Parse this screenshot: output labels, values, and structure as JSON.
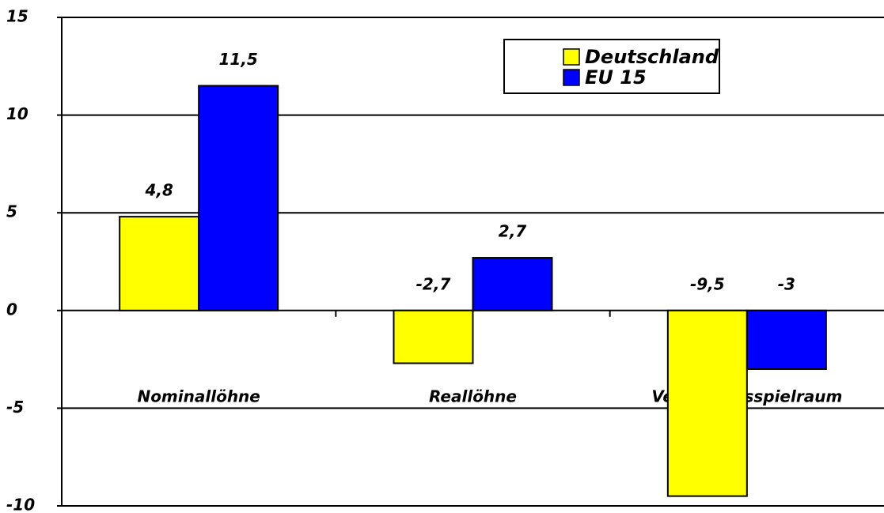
{
  "chart_data": {
    "type": "bar",
    "categories": [
      "Nominallöhne",
      "Reallöhne",
      "Verteilungsspielraum"
    ],
    "series": [
      {
        "name": "Deutschland",
        "color": "#ffff00",
        "values": [
          4.8,
          -2.7,
          -9.5
        ],
        "value_labels": [
          "4,8",
          "-2,7",
          "-9,5"
        ]
      },
      {
        "name": "EU 15",
        "color": "#0000ff",
        "values": [
          11.5,
          2.7,
          -3
        ],
        "value_labels": [
          "11,5",
          "2,7",
          "-3"
        ]
      }
    ],
    "ylim": [
      -10,
      15
    ],
    "yticks": [
      -10,
      -5,
      0,
      5,
      10,
      15
    ],
    "grid": true,
    "legend": "upper right"
  }
}
